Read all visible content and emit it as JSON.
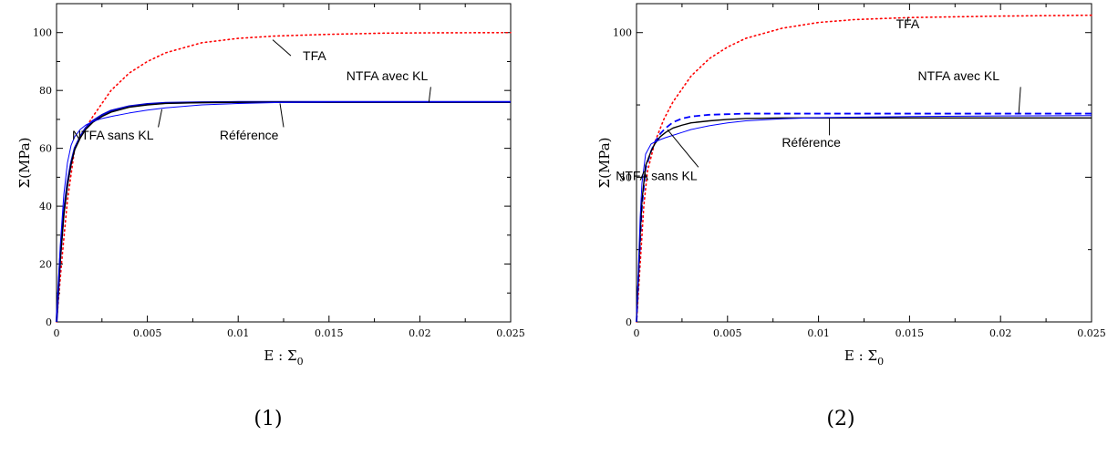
{
  "chart_data": [
    {
      "type": "line",
      "caption": "(1)",
      "xlabel_main": "E : Σ",
      "xlabel_sub": "0",
      "ylabel": "Σ(MPa)",
      "xlim": [
        0,
        0.025
      ],
      "ylim": [
        0,
        110
      ],
      "xticks": [
        0,
        0.005,
        0.01,
        0.015,
        0.02,
        0.025
      ],
      "xtick_labels": [
        "0",
        "0.005",
        "0.01",
        "0.015",
        "0.02",
        "0.025"
      ],
      "yticks": [
        0,
        20,
        40,
        60,
        80,
        100
      ],
      "ytick_labels": [
        "0",
        "20",
        "40",
        "60",
        "80",
        "100"
      ],
      "grid": false,
      "series": [
        {
          "id": "tfa",
          "color": "#ff0000",
          "style": "dotted",
          "width": 1.6,
          "x": [
            0,
            0.0003,
            0.0006,
            0.001,
            0.0015,
            0.002,
            0.003,
            0.004,
            0.005,
            0.006,
            0.008,
            0.01,
            0.012,
            0.015,
            0.018,
            0.02,
            0.025
          ],
          "y": [
            0,
            22,
            42,
            60,
            66,
            71,
            80,
            86,
            90,
            93,
            96.5,
            98,
            98.8,
            99.4,
            99.8,
            99.9,
            100
          ]
        },
        {
          "id": "ntfa-avec",
          "color": "#0000cc",
          "style": "solid",
          "width": 2.2,
          "x": [
            0,
            0.0002,
            0.0004,
            0.0006,
            0.0008,
            0.001,
            0.0013,
            0.0016,
            0.002,
            0.0025,
            0.003,
            0.004,
            0.005,
            0.006,
            0.008,
            0.01,
            0.015,
            0.02,
            0.025
          ],
          "y": [
            0,
            22,
            38,
            48,
            55,
            60,
            64,
            67,
            69.5,
            71.5,
            73,
            74.5,
            75.3,
            75.7,
            75.9,
            76,
            76,
            76,
            76
          ]
        },
        {
          "id": "reference",
          "color": "#000000",
          "style": "solid",
          "width": 1.4,
          "x": [
            0,
            0.0002,
            0.0004,
            0.0006,
            0.0008,
            0.001,
            0.0013,
            0.0016,
            0.002,
            0.0025,
            0.003,
            0.004,
            0.005,
            0.006,
            0.008,
            0.01,
            0.015,
            0.02,
            0.025
          ],
          "y": [
            0,
            21,
            37,
            47,
            54.5,
            59.5,
            63.5,
            66.5,
            69,
            71,
            72.5,
            74.2,
            75,
            75.5,
            75.8,
            75.9,
            75.9,
            75.9,
            75.9
          ]
        },
        {
          "id": "ntfa-sans",
          "color": "#0000ff",
          "style": "solid",
          "width": 1.0,
          "x": [
            0,
            0.0002,
            0.0004,
            0.0006,
            0.0008,
            0.001,
            0.0013,
            0.0016,
            0.002,
            0.0025,
            0.003,
            0.004,
            0.005,
            0.006,
            0.008,
            0.01,
            0.012,
            0.015,
            0.02,
            0.025
          ],
          "y": [
            0,
            26,
            44,
            55,
            61,
            64,
            66.5,
            68,
            69.3,
            70.3,
            71,
            72.2,
            73.2,
            74,
            75,
            75.5,
            75.8,
            76,
            76,
            76
          ]
        }
      ],
      "annotations": [
        {
          "text": "TFA",
          "x": 0.0142,
          "y": 90.5,
          "ax": 0.0129,
          "ay": 92,
          "bx": 0.0119,
          "by": 97.5
        },
        {
          "text": "NTFA avec KL",
          "x": 0.0182,
          "y": 83.5,
          "ax": 0.0206,
          "ay": 81.2,
          "bx": 0.0205,
          "by": 76
        },
        {
          "text": "NTFA sans KL",
          "x": 0.0031,
          "y": 63,
          "ax": 0.0056,
          "ay": 67.3,
          "bx": 0.0058,
          "by": 73.5
        },
        {
          "text": "Référence",
          "x": 0.0106,
          "y": 63,
          "ax": 0.0125,
          "ay": 67.3,
          "bx": 0.0123,
          "by": 75.5
        }
      ]
    },
    {
      "type": "line",
      "caption": "(2)",
      "xlabel_main": "E : Σ",
      "xlabel_sub": "0",
      "ylabel": "Σ(MPa)",
      "xlim": [
        0,
        0.025
      ],
      "ylim": [
        0,
        110
      ],
      "xticks": [
        0,
        0.005,
        0.01,
        0.015,
        0.02,
        0.025
      ],
      "xtick_labels": [
        "0",
        "0.005",
        "0.01",
        "0.015",
        "0.02",
        "0.025"
      ],
      "yticks": [
        0,
        50,
        100
      ],
      "ytick_labels": [
        "0",
        "50",
        "100"
      ],
      "grid": false,
      "series": [
        {
          "id": "tfa",
          "color": "#ff0000",
          "style": "dotted",
          "width": 1.6,
          "x": [
            0,
            0.0002,
            0.0004,
            0.0006,
            0.001,
            0.0015,
            0.002,
            0.003,
            0.004,
            0.005,
            0.006,
            0.008,
            0.01,
            0.012,
            0.015,
            0.02,
            0.025
          ],
          "y": [
            0,
            20,
            40,
            52,
            62,
            70,
            76,
            85,
            91,
            95,
            98,
            101.5,
            103.5,
            104.5,
            105.2,
            105.7,
            106
          ]
        },
        {
          "id": "ntfa-avec",
          "color": "#0000ff",
          "style": "dashed",
          "width": 1.8,
          "x": [
            0,
            0.0001,
            0.0002,
            0.0003,
            0.0005,
            0.0008,
            0.001,
            0.0013,
            0.0016,
            0.002,
            0.0025,
            0.003,
            0.004,
            0.005,
            0.006,
            0.008,
            0.01,
            0.015,
            0.02,
            0.025
          ],
          "y": [
            0,
            14,
            28,
            40,
            53,
            59,
            62,
            65,
            67,
            69,
            70.3,
            71,
            71.6,
            71.8,
            72,
            72,
            72,
            72,
            72,
            72
          ]
        },
        {
          "id": "reference",
          "color": "#000000",
          "style": "solid",
          "width": 1.4,
          "x": [
            0,
            0.0001,
            0.0002,
            0.0003,
            0.0005,
            0.0008,
            0.001,
            0.0013,
            0.0016,
            0.002,
            0.0025,
            0.003,
            0.004,
            0.005,
            0.006,
            0.008,
            0.01,
            0.015,
            0.02,
            0.025
          ],
          "y": [
            0,
            15,
            30,
            42,
            54,
            59,
            61.5,
            64,
            65.5,
            67,
            68,
            68.8,
            69.5,
            70,
            70.3,
            70.5,
            70.5,
            70.5,
            70.5,
            70.5
          ]
        },
        {
          "id": "ntfa-sans",
          "color": "#0000ff",
          "style": "solid",
          "width": 1.0,
          "x": [
            0,
            0.0001,
            0.0002,
            0.0003,
            0.0005,
            0.0008,
            0.001,
            0.0013,
            0.0016,
            0.002,
            0.0025,
            0.003,
            0.004,
            0.005,
            0.006,
            0.008,
            0.01,
            0.015,
            0.02,
            0.025
          ],
          "y": [
            0,
            18,
            36,
            48,
            58,
            61.5,
            62.2,
            63,
            63.7,
            64.5,
            65.5,
            66.5,
            67.8,
            68.8,
            69.5,
            70.2,
            70.6,
            71,
            71.2,
            71.3
          ]
        }
      ],
      "annotations": [
        {
          "text": "TFA",
          "x": 0.0149,
          "y": 101.5,
          "ax": 0.0149,
          "ay": 103.5,
          "bx": 0.0149,
          "by": 105.2
        },
        {
          "text": "NTFA  avec KL",
          "x": 0.0177,
          "y": 83.5,
          "ax": 0.0211,
          "ay": 81.2,
          "bx": 0.021,
          "by": 72
        },
        {
          "text": "NTFA sans KL",
          "x": 0.0011,
          "y": 49,
          "ax": 0.0034,
          "ay": 53.5,
          "bx": 0.0017,
          "by": 66.5
        },
        {
          "text": "Référence",
          "x": 0.0096,
          "y": 60.5,
          "ax": 0.0106,
          "ay": 64.5,
          "bx": 0.0106,
          "by": 70.4
        }
      ]
    }
  ]
}
